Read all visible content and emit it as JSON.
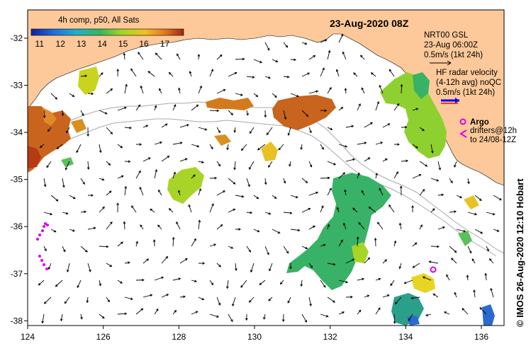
{
  "map": {
    "title": "23-Aug-2020 08Z",
    "credit": "© IMOS 26-Aug-2020 12:10 Hobart",
    "lon_ticks": [
      "124",
      "126",
      "128",
      "130",
      "132",
      "134",
      "136"
    ],
    "lat_ticks": [
      "-32",
      "-33",
      "-34",
      "-35",
      "-36",
      "-37",
      "-38"
    ],
    "lon_range": [
      124,
      136.6
    ],
    "lat_range": [
      -38.1,
      -31.4
    ],
    "land_color": "#fdc99a"
  },
  "colorbar": {
    "title": "4h comp, p50, All Sats",
    "ticks": [
      "11",
      "12",
      "13",
      "14",
      "15",
      "16",
      "17"
    ],
    "range": [
      10.6,
      17.9
    ]
  },
  "legend": {
    "model_label": "NRT00 GSL",
    "model_time": "23-Aug 06:00Z",
    "model_scale": "0.5m/s (1kt 24h)",
    "hf_title": "HF radar velocity",
    "hf_avg": "(4-12h avg) noQC",
    "hf_scale": "0.5m/s (1kt 24h)",
    "argo_label": "Argo",
    "drifter_line1": "drifters@12h",
    "drifter_line2": "to 24/08-12Z",
    "argo_color": "#e000e0",
    "hf_color": "#0000ff"
  }
}
